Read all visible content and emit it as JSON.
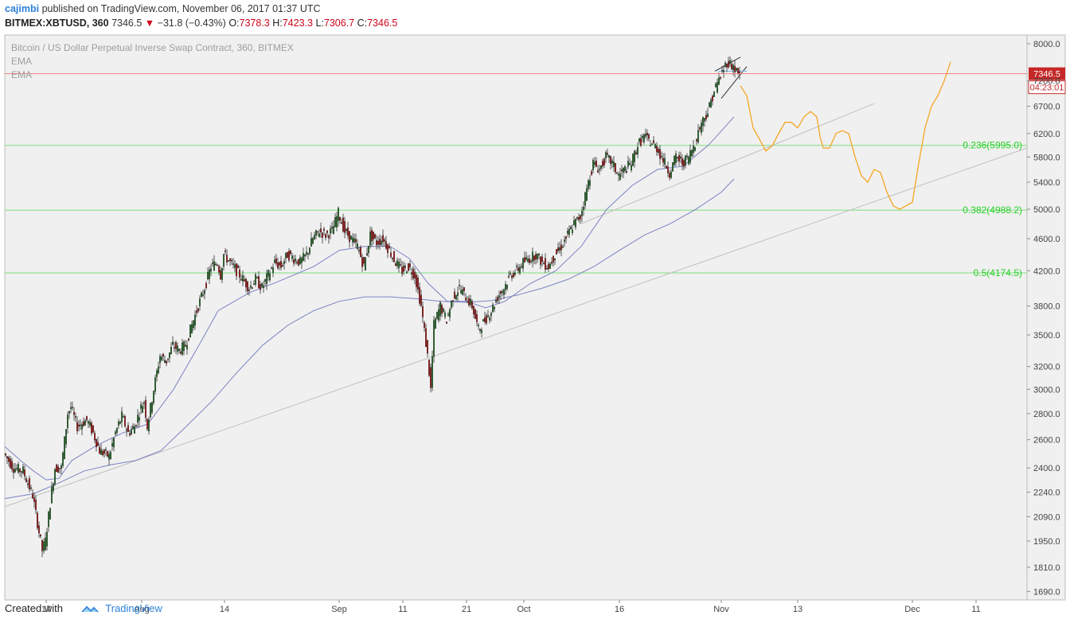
{
  "header": {
    "author": "cajimbi",
    "published_text": "published on TradingView.com, November 06, 2017 01:37 UTC",
    "symbol": "BITMEX:XBTUSD, 360",
    "last": "7346.5",
    "change": "−31.8 (−0.43%)",
    "open_label": "O:",
    "open": "7378.3",
    "high_label": "H:",
    "high": "7423.3",
    "low_label": "L:",
    "low": "7306.7",
    "close_label": "C:",
    "close": "7346.5"
  },
  "legend": {
    "title": "Bitcoin / US Dollar Perpetual Inverse Swap Contract, 360, BITMEX",
    "ema1": "EMA",
    "ema2": "EMA"
  },
  "footer": {
    "created_with": "Created with",
    "brand": "TradingView"
  },
  "colors": {
    "background": "#f0f0f0",
    "up": "#2e7d32",
    "down": "#b71c1c",
    "ema": "#7b83c4",
    "fib": "#7ee07e",
    "fib_label": "#26d126",
    "projection": "#f5a623",
    "trendline": "#c0c0c0",
    "price_line": "#f08080",
    "price_tag": "#c62828"
  },
  "chart_data": {
    "type": "candlestick",
    "y_scale": "log",
    "ylim": [
      1650,
      8200
    ],
    "y_ticks": [
      1690.0,
      1810.0,
      1950.0,
      2090.0,
      2240.0,
      2400.0,
      2600.0,
      2800.0,
      3000.0,
      3200.0,
      3500.0,
      3800.0,
      4200.0,
      4600.0,
      5000.0,
      5400.0,
      5800.0,
      6200.0,
      6700.0,
      7200.0,
      8000.0
    ],
    "x_ticks": [
      {
        "label": "17",
        "day": 0
      },
      {
        "label": "Aug",
        "day": 15
      },
      {
        "label": "14",
        "day": 28
      },
      {
        "label": "Sep",
        "day": 46
      },
      {
        "label": "11",
        "day": 56
      },
      {
        "label": "21",
        "day": 66
      },
      {
        "label": "Oct",
        "day": 75
      },
      {
        "label": "16",
        "day": 90
      },
      {
        "label": "Nov",
        "day": 106
      },
      {
        "label": "13",
        "day": 118
      },
      {
        "label": "Dec",
        "day": 136
      },
      {
        "label": "11",
        "day": 146
      }
    ],
    "xlim_days": [
      -6.5,
      154
    ],
    "bars_per_day": 4,
    "price_path": [
      [
        -6.5,
        2500
      ],
      [
        -5,
        2400
      ],
      [
        -3.5,
        2380
      ],
      [
        -2,
        2220
      ],
      [
        -0.5,
        1900
      ],
      [
        0,
        1950
      ],
      [
        1,
        2250
      ],
      [
        1.5,
        2400
      ],
      [
        2.5,
        2400
      ],
      [
        3.5,
        2800
      ],
      [
        4,
        2850
      ],
      [
        5,
        2700
      ],
      [
        6.5,
        2750
      ],
      [
        7.5,
        2650
      ],
      [
        8.5,
        2520
      ],
      [
        10,
        2480
      ],
      [
        11,
        2650
      ],
      [
        12,
        2780
      ],
      [
        13,
        2650
      ],
      [
        14,
        2700
      ],
      [
        15,
        2850
      ],
      [
        15.5,
        2900
      ],
      [
        16,
        2700
      ],
      [
        17,
        3000
      ],
      [
        18,
        3300
      ],
      [
        19,
        3250
      ],
      [
        20,
        3400
      ],
      [
        21,
        3350
      ],
      [
        22,
        3400
      ],
      [
        23,
        3600
      ],
      [
        24,
        3800
      ],
      [
        25,
        4000
      ],
      [
        26,
        4250
      ],
      [
        27,
        4300
      ],
      [
        27.5,
        4150
      ],
      [
        28,
        4400
      ],
      [
        29,
        4300
      ],
      [
        30,
        4200
      ],
      [
        31,
        4100
      ],
      [
        32,
        4000
      ],
      [
        33,
        4100
      ],
      [
        34,
        4000
      ],
      [
        35,
        4150
      ],
      [
        36,
        4300
      ],
      [
        37,
        4250
      ],
      [
        38,
        4400
      ],
      [
        39,
        4350
      ],
      [
        40,
        4300
      ],
      [
        41,
        4400
      ],
      [
        42,
        4600
      ],
      [
        43,
        4700
      ],
      [
        44,
        4650
      ],
      [
        45,
        4700
      ],
      [
        46,
        4950
      ],
      [
        47,
        4700
      ],
      [
        48,
        4600
      ],
      [
        49,
        4500
      ],
      [
        50,
        4250
      ],
      [
        51,
        4650
      ],
      [
        52,
        4550
      ],
      [
        53,
        4600
      ],
      [
        54,
        4450
      ],
      [
        55,
        4300
      ],
      [
        56,
        4200
      ],
      [
        57,
        4250
      ],
      [
        58,
        4150
      ],
      [
        59,
        3800
      ],
      [
        60,
        3300
      ],
      [
        60.5,
        3000
      ],
      [
        61,
        3600
      ],
      [
        62,
        3800
      ],
      [
        63,
        3650
      ],
      [
        64,
        3900
      ],
      [
        65,
        4000
      ],
      [
        66,
        3900
      ],
      [
        67,
        3800
      ],
      [
        68,
        3550
      ],
      [
        69,
        3650
      ],
      [
        70,
        3750
      ],
      [
        71,
        3900
      ],
      [
        72,
        4000
      ],
      [
        73,
        4150
      ],
      [
        74,
        4200
      ],
      [
        75,
        4300
      ],
      [
        76,
        4350
      ],
      [
        77,
        4400
      ],
      [
        78,
        4300
      ],
      [
        79,
        4250
      ],
      [
        80,
        4400
      ],
      [
        81,
        4500
      ],
      [
        82,
        4650
      ],
      [
        83,
        4800
      ],
      [
        84,
        4900
      ],
      [
        85,
        5300
      ],
      [
        86,
        5700
      ],
      [
        87,
        5600
      ],
      [
        88,
        5800
      ],
      [
        89,
        5700
      ],
      [
        90,
        5500
      ],
      [
        91,
        5600
      ],
      [
        92,
        5700
      ],
      [
        93,
        6000
      ],
      [
        94,
        6150
      ],
      [
        95,
        6050
      ],
      [
        96,
        5950
      ],
      [
        97,
        5750
      ],
      [
        98,
        5550
      ],
      [
        99,
        5800
      ],
      [
        100,
        5700
      ],
      [
        101,
        5800
      ],
      [
        102,
        6050
      ],
      [
        103,
        6400
      ],
      [
        104,
        6600
      ],
      [
        105,
        7000
      ],
      [
        106,
        7300
      ],
      [
        107,
        7600
      ],
      [
        108,
        7500
      ],
      [
        108.75,
        7346.5
      ]
    ],
    "ema_fast": [
      [
        -6.5,
        2550
      ],
      [
        -4,
        2450
      ],
      [
        -2,
        2380
      ],
      [
        0,
        2320
      ],
      [
        2,
        2330
      ],
      [
        4,
        2450
      ],
      [
        8,
        2560
      ],
      [
        12,
        2650
      ],
      [
        16,
        2720
      ],
      [
        20,
        3000
      ],
      [
        24,
        3400
      ],
      [
        27,
        3750
      ],
      [
        32,
        3950
      ],
      [
        36,
        4060
      ],
      [
        42,
        4250
      ],
      [
        46,
        4450
      ],
      [
        50,
        4500
      ],
      [
        54,
        4500
      ],
      [
        57,
        4350
      ],
      [
        60,
        4050
      ],
      [
        63,
        3850
      ],
      [
        66,
        3850
      ],
      [
        69,
        3780
      ],
      [
        72,
        3850
      ],
      [
        76,
        4050
      ],
      [
        80,
        4200
      ],
      [
        84,
        4500
      ],
      [
        88,
        5000
      ],
      [
        92,
        5350
      ],
      [
        96,
        5600
      ],
      [
        100,
        5650
      ],
      [
        104,
        6000
      ],
      [
        108,
        6500
      ]
    ],
    "ema_slow": [
      [
        -6.5,
        2200
      ],
      [
        -2,
        2230
      ],
      [
        2,
        2300
      ],
      [
        6,
        2380
      ],
      [
        10,
        2420
      ],
      [
        14,
        2450
      ],
      [
        18,
        2520
      ],
      [
        22,
        2700
      ],
      [
        26,
        2900
      ],
      [
        30,
        3150
      ],
      [
        34,
        3400
      ],
      [
        38,
        3600
      ],
      [
        42,
        3750
      ],
      [
        46,
        3850
      ],
      [
        50,
        3900
      ],
      [
        54,
        3900
      ],
      [
        58,
        3880
      ],
      [
        62,
        3850
      ],
      [
        66,
        3840
      ],
      [
        70,
        3860
      ],
      [
        74,
        3920
      ],
      [
        78,
        4000
      ],
      [
        82,
        4100
      ],
      [
        86,
        4250
      ],
      [
        90,
        4450
      ],
      [
        94,
        4650
      ],
      [
        98,
        4800
      ],
      [
        102,
        5000
      ],
      [
        106,
        5250
      ],
      [
        108,
        5450
      ]
    ],
    "fib_levels": [
      {
        "ratio_label": "0.236(5995.0)",
        "price": 5995.0
      },
      {
        "ratio_label": "0.382(4988.2)",
        "price": 4988.2
      },
      {
        "ratio_label": "0.5(4174.5)",
        "price": 4174.5
      }
    ],
    "trendlines": [
      {
        "p1": [
          -6.5,
          2150
        ],
        "p2": [
          154,
          5950
        ]
      },
      {
        "p1": [
          84,
          4800
        ],
        "p2": [
          130,
          6750
        ]
      }
    ],
    "wedge_lines": [
      {
        "p1": [
          105,
          7400
        ],
        "p2": [
          109,
          7700
        ]
      },
      {
        "p1": [
          106,
          6850
        ],
        "p2": [
          110,
          7500
        ]
      },
      {
        "p1": [
          105.5,
          7400
        ],
        "p2": [
          110,
          7400
        ]
      }
    ],
    "projection": [
      [
        109,
        7100
      ],
      [
        110,
        6900
      ],
      [
        111,
        6300
      ],
      [
        112,
        6100
      ],
      [
        113,
        5900
      ],
      [
        114,
        5990
      ],
      [
        115,
        6200
      ],
      [
        116,
        6400
      ],
      [
        117,
        6400
      ],
      [
        118,
        6300
      ],
      [
        119,
        6500
      ],
      [
        120,
        6600
      ],
      [
        121,
        6500
      ],
      [
        121.5,
        6150
      ],
      [
        122,
        5950
      ],
      [
        123,
        5950
      ],
      [
        124,
        6200
      ],
      [
        125,
        6250
      ],
      [
        126,
        6200
      ],
      [
        127,
        5800
      ],
      [
        128,
        5500
      ],
      [
        129,
        5400
      ],
      [
        130,
        5600
      ],
      [
        131,
        5550
      ],
      [
        132,
        5250
      ],
      [
        133,
        5050
      ],
      [
        134,
        5000
      ],
      [
        135,
        5050
      ],
      [
        136,
        5100
      ],
      [
        137,
        5700
      ],
      [
        138,
        6300
      ],
      [
        139,
        6700
      ],
      [
        140,
        6900
      ],
      [
        141,
        7200
      ],
      [
        142,
        7600
      ]
    ],
    "last_price": {
      "value": "7346.5",
      "countdown": "04:23:01"
    }
  }
}
